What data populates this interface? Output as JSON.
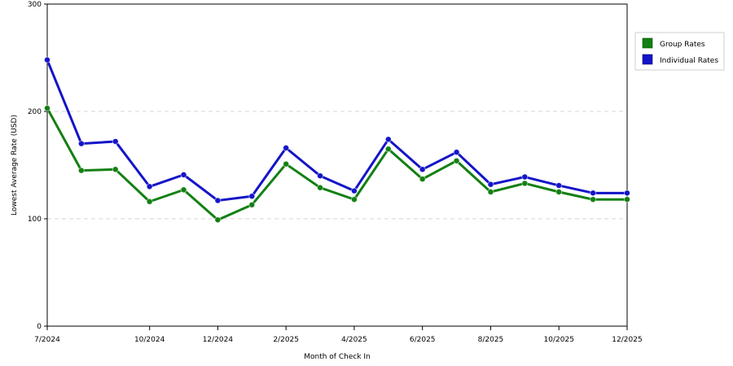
{
  "chart_data": {
    "type": "line",
    "x": [
      "7/2024",
      "8/2024",
      "9/2024",
      "10/2024",
      "11/2024",
      "12/2024",
      "1/2025",
      "2/2025",
      "3/2025",
      "4/2025",
      "5/2025",
      "6/2025",
      "7/2025",
      "8/2025",
      "9/2025",
      "10/2025",
      "11/2025",
      "12/2025"
    ],
    "x_tick_labels": [
      "7/2024",
      "10/2024",
      "12/2024",
      "2/2025",
      "4/2025",
      "6/2025",
      "8/2025",
      "10/2025",
      "12/2025"
    ],
    "x_tick_months": [
      "7/2024",
      "10/2024",
      "12/2024",
      "2/2025",
      "4/2025",
      "6/2025",
      "8/2025",
      "10/2025",
      "12/2025"
    ],
    "xlabel": "Month of Check In",
    "ylabel": "Lowest Average Rate (USD)",
    "ylim": [
      0,
      300
    ],
    "y_ticks": [
      0,
      100,
      200,
      300
    ],
    "y_tick_labels": [
      "0",
      "100",
      "200",
      "300"
    ],
    "grid": "horizontal dashed at 100 and 200",
    "legend_position": "right",
    "series": [
      {
        "name": "Group Rates",
        "color": "#138013",
        "values": [
          203,
          145,
          146,
          116,
          127,
          99,
          113,
          151,
          129,
          118,
          165,
          137,
          154,
          125,
          133,
          125,
          118,
          118
        ]
      },
      {
        "name": "Individual Rates",
        "color": "#1414c8",
        "values": [
          248,
          170,
          172,
          130,
          141,
          117,
          121,
          166,
          140,
          126,
          174,
          146,
          162,
          132,
          139,
          131,
          124,
          124
        ]
      }
    ]
  }
}
